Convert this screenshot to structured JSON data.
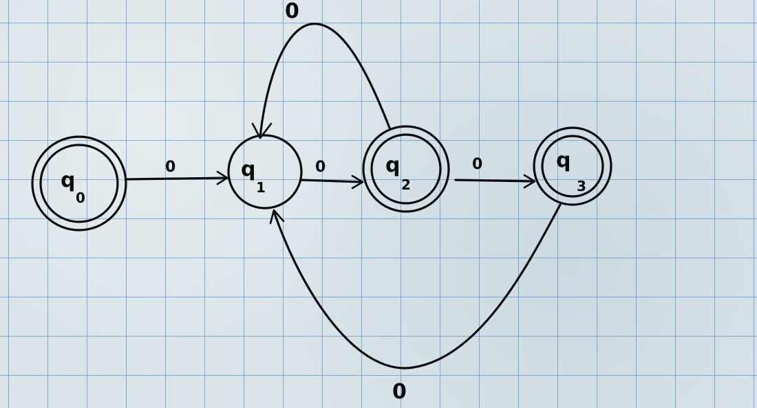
{
  "diagram": {
    "states": [
      {
        "id": "q0",
        "symbol": "q",
        "subscript": "0",
        "accepting": true
      },
      {
        "id": "q1",
        "symbol": "q",
        "subscript": "1",
        "accepting": false
      },
      {
        "id": "q2",
        "symbol": "q",
        "subscript": "2",
        "accepting": true
      },
      {
        "id": "q3",
        "symbol": "q",
        "subscript": "3",
        "accepting": true
      }
    ],
    "transitions": [
      {
        "from": "q0",
        "to": "q1",
        "label": "0"
      },
      {
        "from": "q1",
        "to": "q2",
        "label": "0"
      },
      {
        "from": "q2",
        "to": "q3",
        "label": "0"
      },
      {
        "from": "q2",
        "to": "q1",
        "label": "0"
      },
      {
        "from": "q3",
        "to": "q1",
        "label": "0"
      }
    ]
  },
  "colors": {
    "ink": "#0b0b0b",
    "grid": "#5f96c8",
    "paper": "#d9e3e8"
  }
}
